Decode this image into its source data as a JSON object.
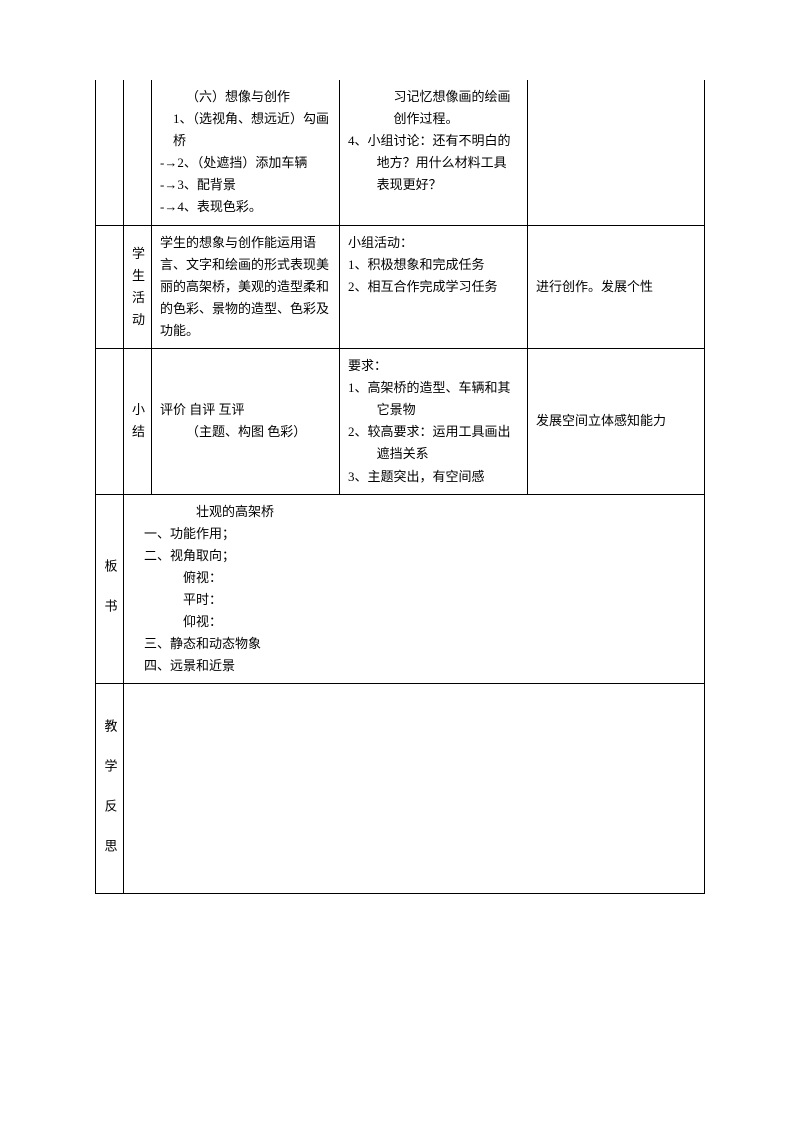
{
  "row1": {
    "teach": {
      "title": "（六）想像与创作",
      "line1": "1、（选视角、想远近）勾画桥",
      "line2": "-→2、（处遮挡）添加车辆",
      "line3": "-→3、配背景",
      "line4": "-→4、表现色彩。"
    },
    "student": {
      "line1": "习记忆想像画的绘画创作过程。",
      "line2": "4、小组讨论：还有不明白的地方？用什么材料工具表现更好？"
    }
  },
  "row2": {
    "label": "学生活动",
    "teach": "学生的想象与创作能运用语言、文字和绘画的形式表现美丽的高架桥，美观的造型柔和的色彩、景物的造型、色彩及功能。",
    "student": {
      "title": "小组活动：",
      "line1": "1、积极想象和完成任务",
      "line2": "2、相互合作完成学习任务"
    },
    "purpose": "进行创作。发展个性"
  },
  "row3": {
    "label": "小结",
    "teach": {
      "line1": "评价 自评 互评",
      "line2": "（主题、构图 色彩）"
    },
    "student": {
      "title": "要求：",
      "line1": "1、高架桥的造型、车辆和其它景物",
      "line2": "2、较高要求：运用工具画出遮挡关系",
      "line3": "3、主题突出，有空间感"
    },
    "purpose": "发展空间立体感知能力"
  },
  "board": {
    "label": "板 书",
    "title": "壮观的高架桥",
    "line1": "一、功能作用；",
    "line2": "二、视角取向；",
    "sub1": "俯视：",
    "sub2": "平时：",
    "sub3": "仰视：",
    "line3": "三、静态和动态物象",
    "line4": "四、远景和近景"
  },
  "reflection": {
    "label": "教 学 反 思"
  }
}
